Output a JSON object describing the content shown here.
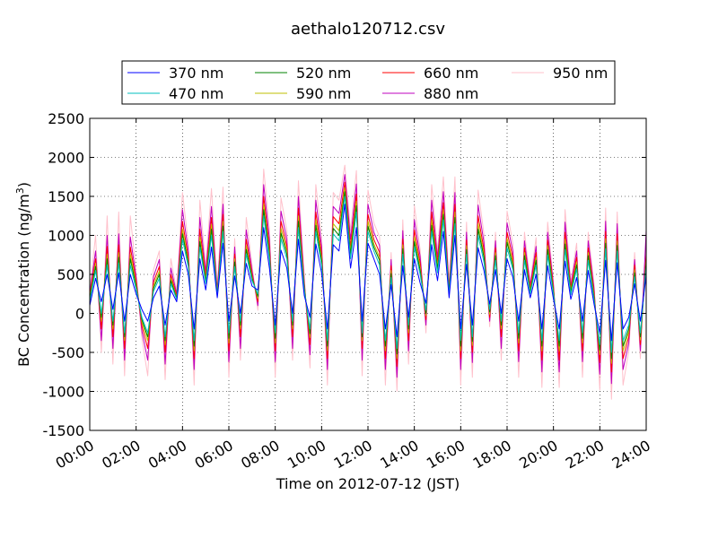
{
  "chart_data": {
    "type": "line",
    "title": "aethalo120712.csv",
    "xlabel": "Time on 2012-07-12 (JST)",
    "ylabel": "BC Concentration (ng/m³)",
    "ylabel_parts": {
      "prefix": "BC Concentration (ng/m",
      "exponent": "3",
      "suffix": ")"
    },
    "xlim": [
      "00:00",
      "24:00"
    ],
    "ylim": [
      -1500,
      2500
    ],
    "grid": true,
    "legend_position": "top-center",
    "x_ticks": [
      "00:00",
      "02:00",
      "04:00",
      "06:00",
      "08:00",
      "10:00",
      "12:00",
      "14:00",
      "16:00",
      "18:00",
      "20:00",
      "22:00",
      "24:00"
    ],
    "y_ticks": [
      "-1500",
      "-1000",
      "-500",
      "0",
      "500",
      "1000",
      "1500",
      "2000",
      "2500"
    ],
    "x": [
      "00:00",
      "00:15",
      "00:30",
      "00:45",
      "01:00",
      "01:15",
      "01:30",
      "01:45",
      "02:00",
      "02:15",
      "02:30",
      "02:45",
      "03:00",
      "03:15",
      "03:30",
      "03:45",
      "04:00",
      "04:15",
      "04:30",
      "04:45",
      "05:00",
      "05:15",
      "05:30",
      "05:45",
      "06:00",
      "06:15",
      "06:30",
      "06:45",
      "07:00",
      "07:15",
      "07:30",
      "07:45",
      "08:00",
      "08:15",
      "08:30",
      "08:45",
      "09:00",
      "09:15",
      "09:30",
      "09:45",
      "10:00",
      "10:15",
      "10:30",
      "10:45",
      "11:00",
      "11:15",
      "11:30",
      "11:45",
      "12:00",
      "12:15",
      "12:30",
      "12:45",
      "13:00",
      "13:15",
      "13:30",
      "13:45",
      "14:00",
      "14:15",
      "14:30",
      "14:45",
      "15:00",
      "15:15",
      "15:30",
      "15:45",
      "16:00",
      "16:15",
      "16:30",
      "16:45",
      "17:00",
      "17:15",
      "17:30",
      "17:45",
      "18:00",
      "18:15",
      "18:30",
      "18:45",
      "19:00",
      "19:15",
      "19:30",
      "19:45",
      "20:00",
      "20:15",
      "20:30",
      "20:45",
      "21:00",
      "21:15",
      "21:30",
      "21:45",
      "22:00",
      "22:15",
      "22:30",
      "22:45",
      "23:00",
      "23:15",
      "23:30",
      "23:45",
      "24:00"
    ],
    "series": [
      {
        "name": "370 nm",
        "color": "#0000ff",
        "values": [
          100,
          450,
          150,
          500,
          50,
          520,
          -100,
          500,
          250,
          50,
          -100,
          200,
          350,
          -150,
          300,
          150,
          800,
          500,
          -200,
          700,
          300,
          850,
          200,
          900,
          -100,
          480,
          0,
          640,
          350,
          300,
          1100,
          580,
          -150,
          810,
          580,
          0,
          950,
          230,
          -50,
          890,
          520,
          -200,
          880,
          800,
          1400,
          580,
          1100,
          -100,
          900,
          700,
          500,
          -200,
          370,
          -300,
          610,
          -50,
          700,
          390,
          130,
          880,
          420,
          1050,
          200,
          1000,
          -200,
          630,
          -150,
          840,
          550,
          120,
          560,
          0,
          700,
          460,
          -100,
          560,
          200,
          500,
          -200,
          610,
          180,
          -200,
          670,
          180,
          460,
          -100,
          550,
          120,
          -250,
          680,
          -350,
          650,
          -200,
          -50,
          380,
          -100,
          480
        ]
      },
      {
        "name": "470 nm",
        "color": "#00bfbf",
        "values": [
          150,
          550,
          0,
          620,
          -100,
          650,
          -250,
          620,
          310,
          -50,
          -250,
          280,
          450,
          -300,
          380,
          180,
          950,
          600,
          -350,
          850,
          380,
          1000,
          220,
          1050,
          -250,
          600,
          -100,
          760,
          420,
          250,
          1250,
          690,
          -250,
          960,
          700,
          -100,
          1100,
          300,
          -200,
          1050,
          620,
          -350,
          1020,
          930,
          1500,
          700,
          1300,
          -250,
          1050,
          800,
          620,
          -350,
          460,
          -450,
          760,
          -150,
          850,
          500,
          40,
          1050,
          520,
          1200,
          250,
          1150,
          -350,
          760,
          -300,
          1000,
          660,
          50,
          680,
          -100,
          840,
          560,
          -250,
          680,
          250,
          620,
          -350,
          750,
          240,
          -350,
          820,
          240,
          570,
          -250,
          680,
          170,
          -400,
          830,
          -500,
          800,
          -350,
          -150,
          470,
          -250,
          600
        ]
      },
      {
        "name": "520 nm",
        "color": "#008000",
        "values": [
          180,
          600,
          -50,
          700,
          -150,
          720,
          -300,
          700,
          340,
          -80,
          -300,
          320,
          500,
          -350,
          420,
          190,
          1020,
          640,
          -420,
          920,
          410,
          1080,
          230,
          1120,
          -320,
          660,
          -150,
          820,
          450,
          220,
          1330,
          740,
          -320,
          1030,
          760,
          -150,
          1180,
          330,
          -260,
          1130,
          670,
          -420,
          1090,
          1000,
          1560,
          760,
          1380,
          -300,
          1120,
          850,
          680,
          -420,
          510,
          -520,
          830,
          -200,
          920,
          550,
          0,
          1130,
          570,
          1270,
          270,
          1230,
          -420,
          820,
          -360,
          1080,
          720,
          20,
          740,
          -150,
          910,
          610,
          -320,
          740,
          270,
          680,
          -420,
          820,
          270,
          -420,
          890,
          270,
          620,
          -320,
          740,
          200,
          -470,
          900,
          -580,
          870,
          -420,
          -200,
          520,
          -300,
          650
        ]
      },
      {
        "name": "590 nm",
        "color": "#bfbf00",
        "values": [
          200,
          640,
          -100,
          760,
          -200,
          780,
          -350,
          760,
          370,
          -110,
          -350,
          350,
          540,
          -400,
          450,
          200,
          1080,
          670,
          -480,
          980,
          430,
          1140,
          240,
          1180,
          -380,
          700,
          -200,
          870,
          470,
          190,
          1400,
          780,
          -380,
          1090,
          800,
          -200,
          1250,
          350,
          -310,
          1200,
          710,
          -480,
          1150,
          1060,
          1610,
          800,
          1440,
          -350,
          1180,
          890,
          720,
          -480,
          550,
          -580,
          880,
          -250,
          980,
          590,
          -30,
          1200,
          600,
          1330,
          280,
          1300,
          -480,
          870,
          -410,
          1150,
          760,
          -10,
          780,
          -200,
          960,
          650,
          -380,
          780,
          290,
          720,
          -480,
          870,
          290,
          -480,
          950,
          290,
          660,
          -380,
          780,
          230,
          -530,
          960,
          -640,
          930,
          -480,
          -240,
          560,
          -340,
          690
        ]
      },
      {
        "name": "660 nm",
        "color": "#ff0000",
        "values": [
          230,
          700,
          -200,
          860,
          -300,
          880,
          -450,
          850,
          410,
          -160,
          -450,
          400,
          600,
          -500,
          500,
          220,
          1180,
          720,
          -580,
          1080,
          470,
          1230,
          260,
          1270,
          -480,
          760,
          -300,
          950,
          500,
          150,
          1500,
          850,
          -480,
          1180,
          860,
          -300,
          1350,
          380,
          -400,
          1300,
          770,
          -580,
          1240,
          1150,
          1680,
          860,
          1530,
          -450,
          1270,
          950,
          780,
          -580,
          610,
          -680,
          950,
          -350,
          1070,
          650,
          -80,
          1300,
          650,
          1420,
          300,
          1400,
          -580,
          940,
          -500,
          1250,
          820,
          -50,
          840,
          -300,
          1040,
          710,
          -480,
          840,
          320,
          780,
          -600,
          940,
          320,
          -600,
          1040,
          320,
          720,
          -480,
          840,
          270,
          -630,
          1050,
          -750,
          1020,
          -580,
          -300,
          620,
          -400,
          760
        ]
      },
      {
        "name": "880 nm",
        "color": "#bf00bf",
        "values": [
          260,
          800,
          -350,
          1000,
          -450,
          1020,
          -600,
          980,
          460,
          -230,
          -600,
          470,
          690,
          -650,
          580,
          250,
          1330,
          800,
          -720,
          1230,
          530,
          1370,
          290,
          1400,
          -620,
          850,
          -450,
          1070,
          550,
          100,
          1650,
          950,
          -620,
          1310,
          950,
          -450,
          1500,
          420,
          -530,
          1450,
          860,
          -720,
          1370,
          1280,
          1780,
          950,
          1660,
          -600,
          1400,
          1040,
          870,
          -720,
          690,
          -820,
          1060,
          -480,
          1200,
          730,
          -150,
          1450,
          720,
          1560,
          330,
          1550,
          -720,
          1040,
          -630,
          1390,
          910,
          -100,
          930,
          -450,
          1160,
          790,
          -620,
          930,
          360,
          860,
          -750,
          1040,
          360,
          -750,
          1170,
          360,
          800,
          -620,
          930,
          320,
          -780,
          1180,
          -900,
          1150,
          -720,
          -380,
          690,
          -480,
          1060
        ]
      },
      {
        "name": "950 nm",
        "color": "#ffc0cb",
        "values": [
          300,
          1000,
          -500,
          1250,
          -650,
          1300,
          -800,
          1250,
          520,
          -320,
          -800,
          560,
          800,
          -850,
          700,
          280,
          1550,
          900,
          -920,
          1450,
          600,
          1600,
          330,
          1620,
          -820,
          960,
          -600,
          1230,
          620,
          40,
          1850,
          1080,
          -820,
          1480,
          1060,
          -600,
          1700,
          470,
          -700,
          1650,
          970,
          -920,
          1550,
          1450,
          1900,
          1060,
          1830,
          -800,
          1580,
          1160,
          980,
          -920,
          780,
          -1000,
          1200,
          -650,
          1380,
          820,
          -250,
          1650,
          800,
          1750,
          370,
          1750,
          -920,
          1170,
          -820,
          1580,
          1020,
          -170,
          1040,
          -600,
          1310,
          890,
          -820,
          1040,
          400,
          970,
          -950,
          1170,
          400,
          -950,
          1330,
          400,
          900,
          -820,
          1040,
          370,
          -980,
          1350,
          -1100,
          1300,
          -920,
          -480,
          780,
          -580,
          920
        ]
      }
    ]
  }
}
